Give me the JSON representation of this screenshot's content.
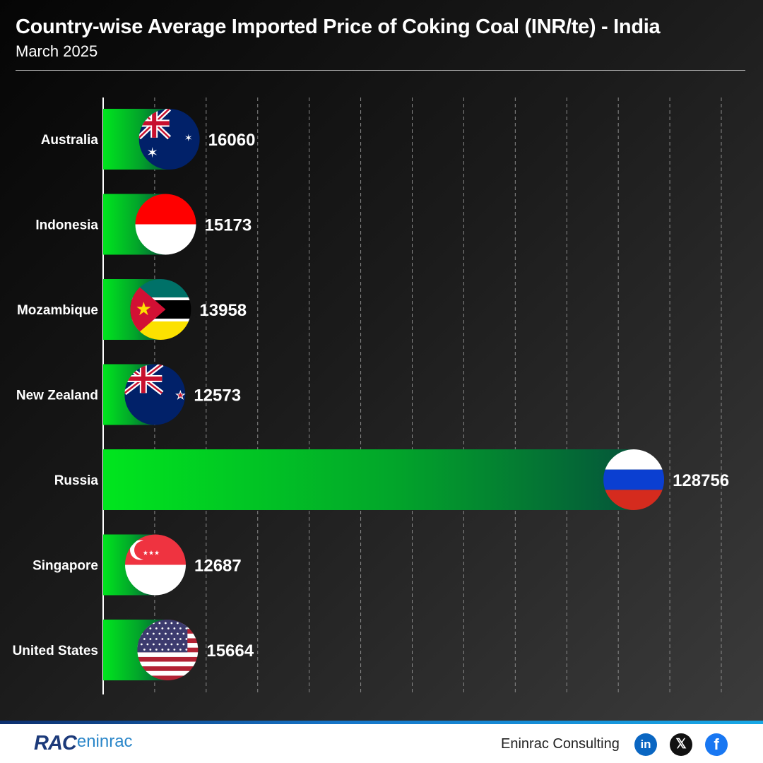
{
  "title": "Country-wise Average Imported Price of Coking Coal (INR/te) - India",
  "subtitle": "March 2025",
  "chart_data": {
    "type": "bar",
    "orientation": "horizontal",
    "categories": [
      "Australia",
      "Indonesia",
      "Mozambique",
      "New Zealand",
      "Russia",
      "Singapore",
      "United States"
    ],
    "values": [
      16060,
      15173,
      13958,
      12573,
      128756,
      12687,
      15664
    ],
    "flags": [
      "australia-flag",
      "indonesia-flag",
      "mozambique-flag",
      "new-zealand-flag",
      "russia-flag",
      "singapore-flag",
      "united-states-flag"
    ],
    "xlim": [
      0,
      150000
    ],
    "grid": true,
    "bar_color": "#00e61e"
  },
  "footer": {
    "logo_rac": "RAC",
    "logo_eninrac": "eninrac",
    "brand": "Eninrac Consulting",
    "social": [
      "linkedin-icon",
      "x-icon",
      "facebook-icon"
    ]
  }
}
